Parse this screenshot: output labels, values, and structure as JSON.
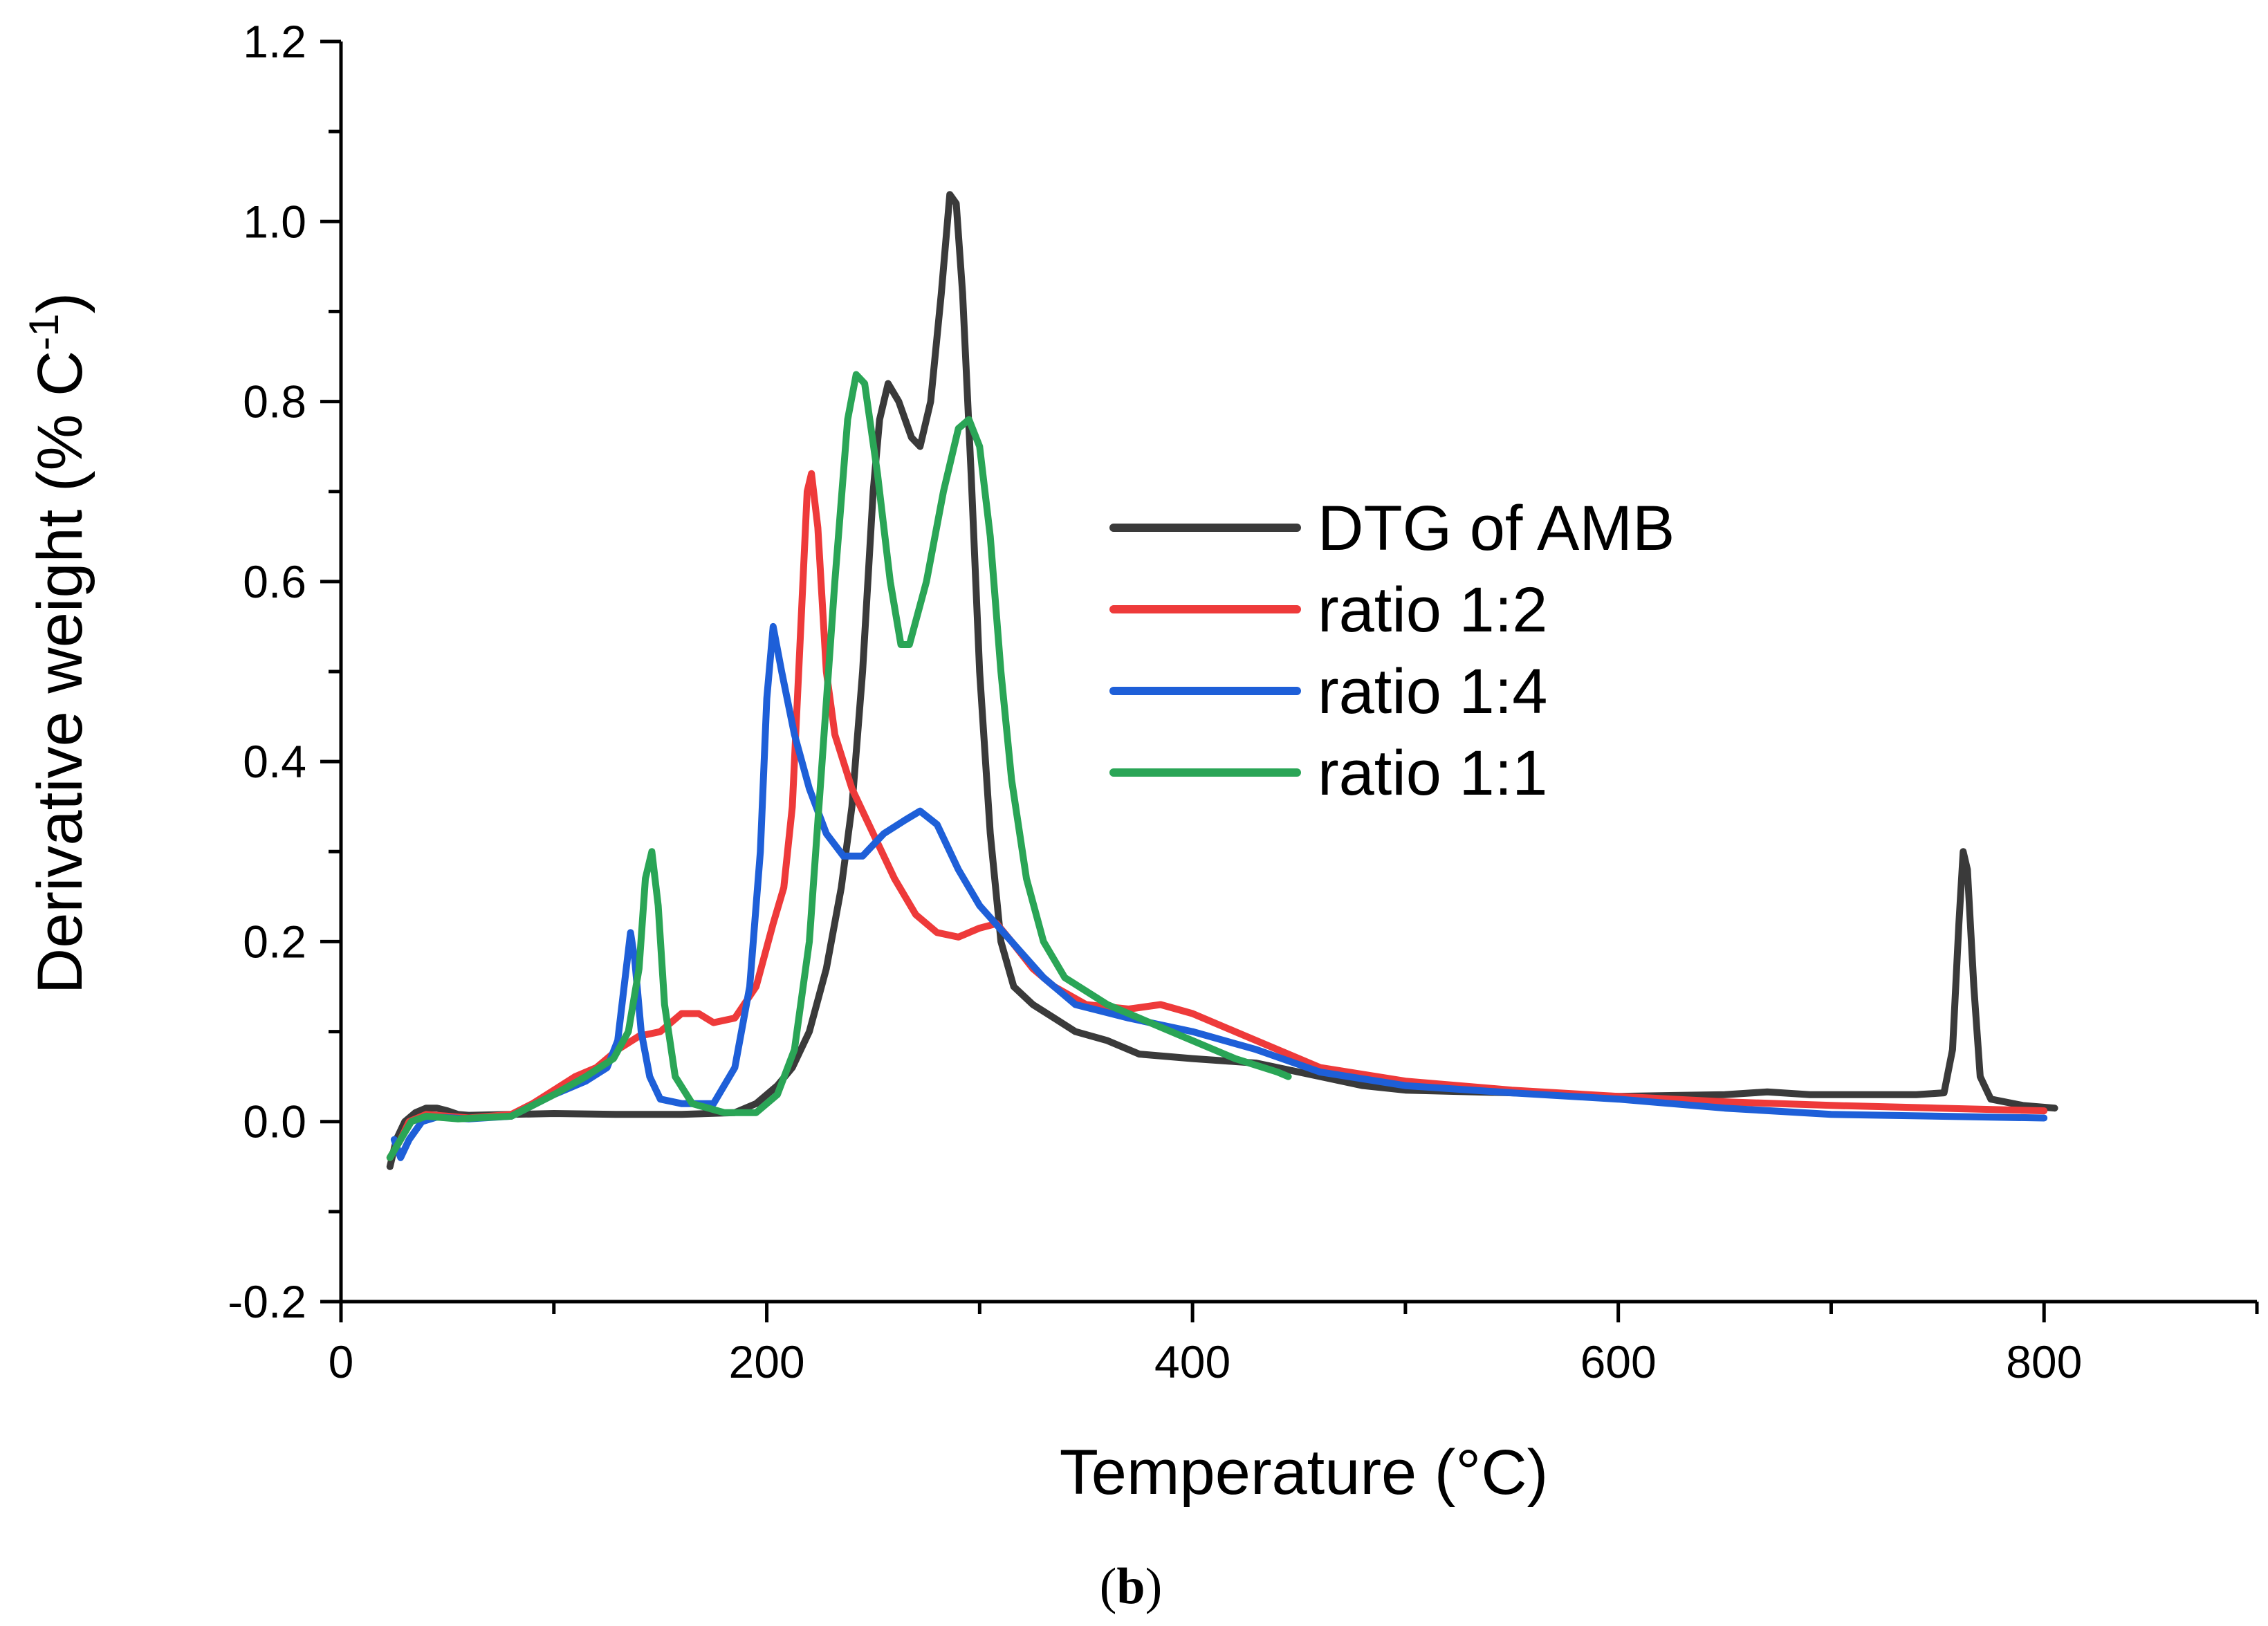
{
  "chart_data": {
    "type": "line",
    "title": "",
    "xlabel": "Temperature (°C)",
    "ylabel_main": "Derivative weight (% C",
    "ylabel_sup": "-1",
    "ylabel_close": ")",
    "xlim": [
      0,
      900
    ],
    "ylim": [
      -0.2,
      1.2
    ],
    "x_ticks": [
      0,
      200,
      400,
      600,
      800
    ],
    "y_ticks": [
      -0.2,
      0.0,
      0.2,
      0.4,
      0.6,
      0.8,
      1.0,
      1.2
    ],
    "y_tick_labels": [
      "-0.2",
      "0.0",
      "0.2",
      "0.4",
      "0.6",
      "0.8",
      "1.0",
      "1.2"
    ],
    "grid": false,
    "legend_position": "center-right",
    "panel_label": "b",
    "series": [
      {
        "name": "DTG of AMB",
        "color": "#3a3a3a",
        "points": [
          [
            23,
            -0.05
          ],
          [
            26,
            -0.02
          ],
          [
            30,
            0.0
          ],
          [
            35,
            0.01
          ],
          [
            40,
            0.015
          ],
          [
            45,
            0.015
          ],
          [
            50,
            0.012
          ],
          [
            55,
            0.008
          ],
          [
            60,
            0.007
          ],
          [
            80,
            0.008
          ],
          [
            100,
            0.009
          ],
          [
            130,
            0.008
          ],
          [
            160,
            0.008
          ],
          [
            185,
            0.01
          ],
          [
            195,
            0.02
          ],
          [
            205,
            0.04
          ],
          [
            212,
            0.06
          ],
          [
            220,
            0.1
          ],
          [
            228,
            0.17
          ],
          [
            235,
            0.26
          ],
          [
            240,
            0.35
          ],
          [
            245,
            0.5
          ],
          [
            250,
            0.7
          ],
          [
            253,
            0.78
          ],
          [
            257,
            0.82
          ],
          [
            262,
            0.8
          ],
          [
            268,
            0.76
          ],
          [
            272,
            0.75
          ],
          [
            277,
            0.8
          ],
          [
            282,
            0.92
          ],
          [
            286,
            1.03
          ],
          [
            289,
            1.02
          ],
          [
            292,
            0.92
          ],
          [
            296,
            0.72
          ],
          [
            300,
            0.5
          ],
          [
            305,
            0.32
          ],
          [
            310,
            0.2
          ],
          [
            316,
            0.15
          ],
          [
            325,
            0.13
          ],
          [
            335,
            0.115
          ],
          [
            345,
            0.1
          ],
          [
            360,
            0.09
          ],
          [
            375,
            0.075
          ],
          [
            400,
            0.07
          ],
          [
            430,
            0.065
          ],
          [
            460,
            0.05
          ],
          [
            480,
            0.04
          ],
          [
            500,
            0.035
          ],
          [
            550,
            0.032
          ],
          [
            600,
            0.028
          ],
          [
            650,
            0.03
          ],
          [
            670,
            0.033
          ],
          [
            690,
            0.03
          ],
          [
            720,
            0.03
          ],
          [
            740,
            0.03
          ],
          [
            753,
            0.032
          ],
          [
            757,
            0.08
          ],
          [
            760,
            0.22
          ],
          [
            762,
            0.3
          ],
          [
            764,
            0.28
          ],
          [
            767,
            0.15
          ],
          [
            770,
            0.05
          ],
          [
            775,
            0.025
          ],
          [
            790,
            0.018
          ],
          [
            805,
            0.015
          ]
        ]
      },
      {
        "name": "ratio 1:2",
        "color": "#ee3a3a",
        "points": [
          [
            23,
            -0.04
          ],
          [
            28,
            -0.02
          ],
          [
            32,
            0.0
          ],
          [
            40,
            0.008
          ],
          [
            50,
            0.006
          ],
          [
            60,
            0.004
          ],
          [
            80,
            0.008
          ],
          [
            90,
            0.02
          ],
          [
            100,
            0.035
          ],
          [
            110,
            0.05
          ],
          [
            120,
            0.06
          ],
          [
            130,
            0.08
          ],
          [
            140,
            0.095
          ],
          [
            150,
            0.1
          ],
          [
            160,
            0.12
          ],
          [
            168,
            0.12
          ],
          [
            175,
            0.11
          ],
          [
            185,
            0.115
          ],
          [
            195,
            0.15
          ],
          [
            203,
            0.22
          ],
          [
            208,
            0.26
          ],
          [
            212,
            0.35
          ],
          [
            216,
            0.55
          ],
          [
            219,
            0.7
          ],
          [
            221,
            0.72
          ],
          [
            224,
            0.66
          ],
          [
            228,
            0.5
          ],
          [
            232,
            0.43
          ],
          [
            240,
            0.37
          ],
          [
            250,
            0.32
          ],
          [
            260,
            0.27
          ],
          [
            270,
            0.23
          ],
          [
            280,
            0.21
          ],
          [
            290,
            0.205
          ],
          [
            300,
            0.215
          ],
          [
            308,
            0.22
          ],
          [
            315,
            0.2
          ],
          [
            325,
            0.17
          ],
          [
            335,
            0.15
          ],
          [
            350,
            0.13
          ],
          [
            370,
            0.125
          ],
          [
            385,
            0.13
          ],
          [
            400,
            0.12
          ],
          [
            420,
            0.1
          ],
          [
            440,
            0.08
          ],
          [
            460,
            0.06
          ],
          [
            500,
            0.045
          ],
          [
            550,
            0.035
          ],
          [
            600,
            0.028
          ],
          [
            650,
            0.022
          ],
          [
            700,
            0.018
          ],
          [
            750,
            0.015
          ],
          [
            800,
            0.012
          ]
        ]
      },
      {
        "name": "ratio 1:4",
        "color": "#1e5fd8",
        "points": [
          [
            25,
            -0.02
          ],
          [
            28,
            -0.04
          ],
          [
            32,
            -0.02
          ],
          [
            38,
            0.0
          ],
          [
            45,
            0.005
          ],
          [
            60,
            0.003
          ],
          [
            80,
            0.006
          ],
          [
            100,
            0.03
          ],
          [
            115,
            0.045
          ],
          [
            125,
            0.06
          ],
          [
            130,
            0.09
          ],
          [
            133,
            0.15
          ],
          [
            136,
            0.21
          ],
          [
            138,
            0.18
          ],
          [
            141,
            0.1
          ],
          [
            145,
            0.05
          ],
          [
            150,
            0.025
          ],
          [
            160,
            0.02
          ],
          [
            175,
            0.02
          ],
          [
            185,
            0.06
          ],
          [
            192,
            0.15
          ],
          [
            197,
            0.3
          ],
          [
            200,
            0.47
          ],
          [
            203,
            0.55
          ],
          [
            207,
            0.5
          ],
          [
            213,
            0.43
          ],
          [
            220,
            0.37
          ],
          [
            228,
            0.32
          ],
          [
            236,
            0.295
          ],
          [
            245,
            0.295
          ],
          [
            255,
            0.32
          ],
          [
            265,
            0.335
          ],
          [
            272,
            0.345
          ],
          [
            280,
            0.33
          ],
          [
            290,
            0.28
          ],
          [
            300,
            0.24
          ],
          [
            315,
            0.2
          ],
          [
            330,
            0.16
          ],
          [
            345,
            0.13
          ],
          [
            370,
            0.115
          ],
          [
            400,
            0.1
          ],
          [
            430,
            0.08
          ],
          [
            460,
            0.055
          ],
          [
            500,
            0.04
          ],
          [
            550,
            0.032
          ],
          [
            600,
            0.025
          ],
          [
            650,
            0.015
          ],
          [
            700,
            0.008
          ],
          [
            750,
            0.006
          ],
          [
            800,
            0.004
          ]
        ]
      },
      {
        "name": "ratio 1:1",
        "color": "#2aa556",
        "points": [
          [
            23,
            -0.04
          ],
          [
            28,
            -0.02
          ],
          [
            33,
            0.0
          ],
          [
            40,
            0.006
          ],
          [
            55,
            0.003
          ],
          [
            80,
            0.006
          ],
          [
            100,
            0.03
          ],
          [
            115,
            0.05
          ],
          [
            128,
            0.07
          ],
          [
            135,
            0.1
          ],
          [
            140,
            0.17
          ],
          [
            143,
            0.27
          ],
          [
            146,
            0.3
          ],
          [
            149,
            0.24
          ],
          [
            152,
            0.13
          ],
          [
            157,
            0.05
          ],
          [
            165,
            0.02
          ],
          [
            180,
            0.01
          ],
          [
            195,
            0.01
          ],
          [
            205,
            0.03
          ],
          [
            213,
            0.08
          ],
          [
            220,
            0.2
          ],
          [
            226,
            0.4
          ],
          [
            232,
            0.6
          ],
          [
            238,
            0.78
          ],
          [
            242,
            0.83
          ],
          [
            246,
            0.82
          ],
          [
            252,
            0.72
          ],
          [
            258,
            0.6
          ],
          [
            263,
            0.53
          ],
          [
            267,
            0.53
          ],
          [
            275,
            0.6
          ],
          [
            283,
            0.7
          ],
          [
            290,
            0.77
          ],
          [
            295,
            0.78
          ],
          [
            300,
            0.75
          ],
          [
            305,
            0.65
          ],
          [
            310,
            0.5
          ],
          [
            315,
            0.38
          ],
          [
            322,
            0.27
          ],
          [
            330,
            0.2
          ],
          [
            340,
            0.16
          ],
          [
            360,
            0.13
          ],
          [
            380,
            0.11
          ],
          [
            400,
            0.09
          ],
          [
            420,
            0.07
          ],
          [
            440,
            0.055
          ],
          [
            445,
            0.05
          ]
        ]
      }
    ]
  }
}
